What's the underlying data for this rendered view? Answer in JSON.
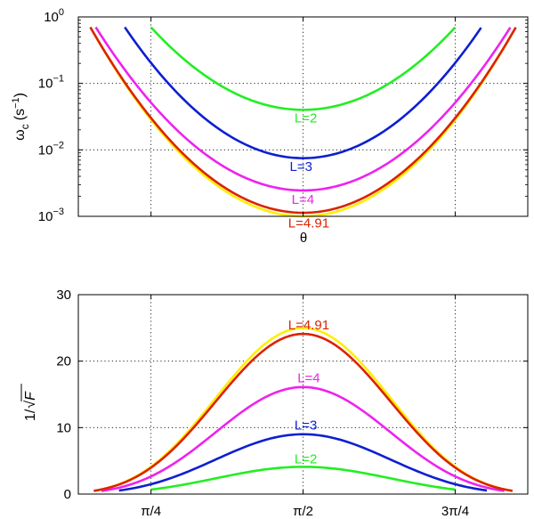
{
  "chart_data": [
    {
      "type": "line",
      "yscale": "log",
      "ylabel": "ω",
      "ylabel_sub": "c",
      "ylabel_unit": "(s",
      "ylabel_unit_exp": "−1",
      "ylabel_unit_close": ")",
      "xlabel": "θ",
      "xlim": [
        0.41,
        2.731
      ],
      "ylim": [
        0.001,
        1
      ],
      "ytick_base": "10",
      "yticks": [
        {
          "value": 1,
          "exp": "0"
        },
        {
          "value": 0.1,
          "exp": "−1"
        },
        {
          "value": 0.01,
          "exp": "−2"
        },
        {
          "value": 0.001,
          "exp": "−3"
        }
      ],
      "xgrid": [
        0.7854,
        1.5708,
        2.3562
      ],
      "grid": true,
      "series": [
        {
          "name": "L=2",
          "label": "L=2",
          "color": "#22ee22",
          "min": 0.04,
          "edge_value": 0.7,
          "x_range": [
            0.785,
            2.356
          ],
          "label_pos": [
            1.585,
            0.026
          ]
        },
        {
          "name": "L=3",
          "label": "L=3",
          "color": "#0d1fd1",
          "min": 0.0075,
          "edge_value": 0.7,
          "x_range": [
            0.65,
            2.49
          ],
          "label_pos": [
            1.56,
            0.0048
          ]
        },
        {
          "name": "L=4",
          "label": "L=4",
          "color": "#ee22ee",
          "min": 0.00245,
          "edge_value": 0.7,
          "x_range": [
            0.5,
            2.641
          ],
          "label_pos": [
            1.57,
            0.00155
          ]
        },
        {
          "name": "yellow",
          "label": "",
          "color": "#ffee00",
          "min": 0.001,
          "edge_value": 0.7,
          "x_range": [
            0.472,
            2.669
          ],
          "label_pos": null
        },
        {
          "name": "L=4.91",
          "label": "L=4.91",
          "color": "#dd2200",
          "min": 0.00113,
          "edge_value": 0.7,
          "x_range": [
            0.472,
            2.669
          ],
          "label_pos": [
            1.6,
            0.00068
          ]
        }
      ]
    },
    {
      "type": "line",
      "ylabel": "1/√F",
      "ylabel_pre": "1/",
      "ylabel_var": "F",
      "xlim": [
        0.41,
        2.731
      ],
      "ylim": [
        0,
        30
      ],
      "yticks": [
        0,
        10,
        20,
        30
      ],
      "xticks": [
        {
          "value": 0.7854,
          "label": "π/4"
        },
        {
          "value": 1.5708,
          "label": "π/2"
        },
        {
          "value": 2.3562,
          "label": "3π/4"
        }
      ],
      "grid": true,
      "series": [
        {
          "name": "L=2",
          "label": "L=2",
          "color": "#22ee22",
          "peak": 4.1,
          "x_range": [
            0.785,
            2.356
          ],
          "label_pos": [
            1.585,
            4.6
          ]
        },
        {
          "name": "L=3",
          "label": "L=3",
          "color": "#0d1fd1",
          "peak": 9.0,
          "x_range": [
            0.62,
            2.52
          ],
          "label_pos": [
            1.585,
            9.7
          ]
        },
        {
          "name": "L=4",
          "label": "L=4",
          "color": "#ee22ee",
          "peak": 16.1,
          "x_range": [
            0.53,
            2.61
          ],
          "label_pos": [
            1.6,
            16.8
          ]
        },
        {
          "name": "yellow",
          "label": "",
          "color": "#ffee00",
          "peak": 25.0,
          "x_range": [
            0.49,
            2.652
          ],
          "label_pos": null
        },
        {
          "name": "L=4.91",
          "label": "L=4.91",
          "color": "#dd2200",
          "peak": 24.1,
          "x_range": [
            0.49,
            2.652
          ],
          "label_pos": [
            1.6,
            24.8
          ]
        }
      ]
    }
  ]
}
